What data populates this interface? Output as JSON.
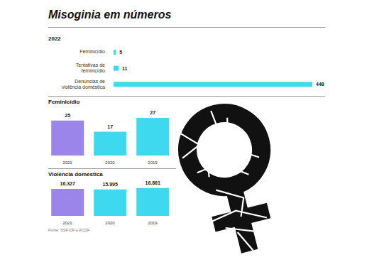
{
  "title": "Misoginia em números",
  "source": "Fonte: SSP-DF e PCDF",
  "chart_data": [
    {
      "type": "bar",
      "title": "2022",
      "orientation": "horizontal",
      "categories": [
        "Feminicídio",
        "Tentativas de feminicídio",
        "Denúncias de violência doméstica"
      ],
      "values": [
        5,
        11,
        448
      ],
      "color": "#3fd9ef",
      "xlim": [
        0,
        448
      ],
      "data_labels": true,
      "tick_labels": "y",
      "grid": false
    },
    {
      "type": "bar",
      "title": "Feminicídio",
      "categories": [
        "2021",
        "2020",
        "2019"
      ],
      "values": [
        25,
        17,
        27
      ],
      "colors": [
        "#9b85e8",
        "#3fd9ef",
        "#3fd9ef"
      ],
      "ylim": [
        0,
        30
      ],
      "data_labels": true,
      "tick_labels": "x",
      "grid": false
    },
    {
      "type": "bar",
      "title": "Violência doméstica",
      "categories": [
        "2021",
        "2020",
        "2019"
      ],
      "values": [
        16327,
        15995,
        16861
      ],
      "value_labels": [
        "16.327",
        "15.995",
        "16.861"
      ],
      "colors": [
        "#9b85e8",
        "#3fd9ef",
        "#3fd9ef"
      ],
      "ylim": [
        0,
        18000
      ],
      "data_labels": true,
      "tick_labels": "x",
      "grid": false
    }
  ]
}
